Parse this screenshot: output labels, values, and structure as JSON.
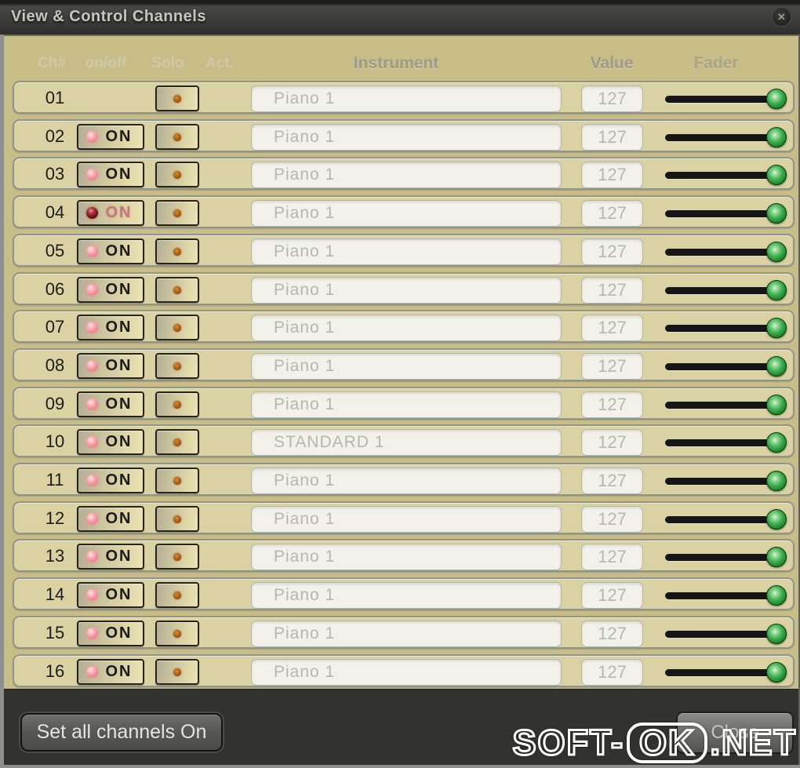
{
  "window": {
    "title": "View & Control Channels",
    "close_glyph": "✕"
  },
  "table": {
    "headers": {
      "ch": "Ch#",
      "onoff": "on/off",
      "solo": "Solo",
      "act": "Act.",
      "instrument": "Instrument",
      "value": "Value",
      "fader": "Fader"
    },
    "rows": [
      {
        "ch": "01",
        "on_label": "",
        "on_state": "hidden",
        "instrument": "Piano 1",
        "value": "127",
        "fader_value": 127,
        "fader_max": 127
      },
      {
        "ch": "02",
        "on_label": "ON",
        "on_state": "on",
        "instrument": "Piano 1",
        "value": "127",
        "fader_value": 127,
        "fader_max": 127
      },
      {
        "ch": "03",
        "on_label": "ON",
        "on_state": "on",
        "instrument": "Piano 1",
        "value": "127",
        "fader_value": 127,
        "fader_max": 127
      },
      {
        "ch": "04",
        "on_label": "ON",
        "on_state": "pressed",
        "instrument": "Piano 1",
        "value": "127",
        "fader_value": 127,
        "fader_max": 127
      },
      {
        "ch": "05",
        "on_label": "ON",
        "on_state": "on",
        "instrument": "Piano 1",
        "value": "127",
        "fader_value": 127,
        "fader_max": 127
      },
      {
        "ch": "06",
        "on_label": "ON",
        "on_state": "on",
        "instrument": "Piano 1",
        "value": "127",
        "fader_value": 127,
        "fader_max": 127
      },
      {
        "ch": "07",
        "on_label": "ON",
        "on_state": "on",
        "instrument": "Piano 1",
        "value": "127",
        "fader_value": 127,
        "fader_max": 127
      },
      {
        "ch": "08",
        "on_label": "ON",
        "on_state": "on",
        "instrument": "Piano 1",
        "value": "127",
        "fader_value": 127,
        "fader_max": 127
      },
      {
        "ch": "09",
        "on_label": "ON",
        "on_state": "on",
        "instrument": "Piano 1",
        "value": "127",
        "fader_value": 127,
        "fader_max": 127
      },
      {
        "ch": "10",
        "on_label": "ON",
        "on_state": "on",
        "instrument": "STANDARD 1",
        "value": "127",
        "fader_value": 127,
        "fader_max": 127
      },
      {
        "ch": "11",
        "on_label": "ON",
        "on_state": "on",
        "instrument": "Piano 1",
        "value": "127",
        "fader_value": 127,
        "fader_max": 127
      },
      {
        "ch": "12",
        "on_label": "ON",
        "on_state": "on",
        "instrument": "Piano 1",
        "value": "127",
        "fader_value": 127,
        "fader_max": 127
      },
      {
        "ch": "13",
        "on_label": "ON",
        "on_state": "on",
        "instrument": "Piano 1",
        "value": "127",
        "fader_value": 127,
        "fader_max": 127
      },
      {
        "ch": "14",
        "on_label": "ON",
        "on_state": "on",
        "instrument": "Piano 1",
        "value": "127",
        "fader_value": 127,
        "fader_max": 127
      },
      {
        "ch": "15",
        "on_label": "ON",
        "on_state": "on",
        "instrument": "Piano 1",
        "value": "127",
        "fader_value": 127,
        "fader_max": 127
      },
      {
        "ch": "16",
        "on_label": "ON",
        "on_state": "on",
        "instrument": "Piano 1",
        "value": "127",
        "fader_value": 127,
        "fader_max": 127
      }
    ]
  },
  "footer": {
    "set_all_label": "Set all channels On",
    "close_label": "Close"
  },
  "watermark": {
    "prefix": "SOFT-",
    "boxed": "OK",
    "suffix": ".NET"
  },
  "colors": {
    "titlebar_bg": "#3a3a38",
    "content_bg": "#c8bd87",
    "row_bg": "#dad2a2",
    "row_border": "#8f948c",
    "button_border": "#26241a",
    "led_pink": "#f29aa4",
    "led_dark_red": "#6e1014",
    "act_dot": "#a85a12",
    "field_bg": "#f2f1ea",
    "field_text": "#b5b8ad",
    "fader_track": "#161616",
    "knob_green": "#2f9e40",
    "footer_bg": "#323230",
    "watermark": "#ffffff"
  }
}
